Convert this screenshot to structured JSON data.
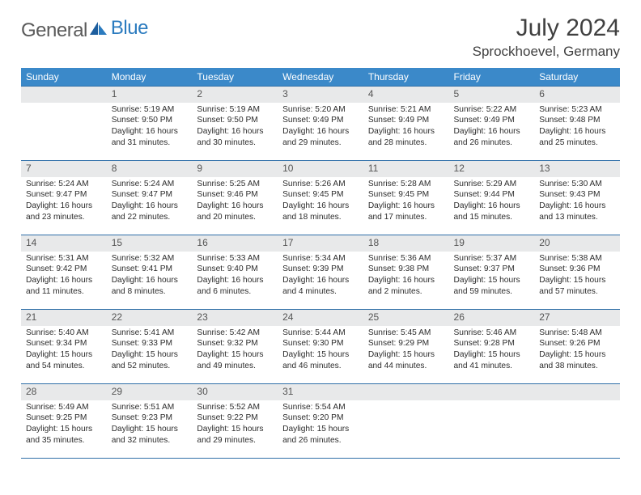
{
  "logo": {
    "general": "General",
    "blue": "Blue"
  },
  "title": "July 2024",
  "location": "Sprockhoevel, Germany",
  "colors": {
    "header_bg": "#3b89c9",
    "header_text": "#ffffff",
    "border": "#2f6fa8",
    "daynum_bg": "#e8e9ea",
    "text": "#2c2c2c",
    "logo_gray": "#5a5a5a",
    "logo_blue": "#2b7bbf"
  },
  "weekdays": [
    "Sunday",
    "Monday",
    "Tuesday",
    "Wednesday",
    "Thursday",
    "Friday",
    "Saturday"
  ],
  "weeks": [
    [
      {
        "day": "",
        "sunrise": "",
        "sunset": "",
        "daylight": ""
      },
      {
        "day": "1",
        "sunrise": "Sunrise: 5:19 AM",
        "sunset": "Sunset: 9:50 PM",
        "daylight": "Daylight: 16 hours and 31 minutes."
      },
      {
        "day": "2",
        "sunrise": "Sunrise: 5:19 AM",
        "sunset": "Sunset: 9:50 PM",
        "daylight": "Daylight: 16 hours and 30 minutes."
      },
      {
        "day": "3",
        "sunrise": "Sunrise: 5:20 AM",
        "sunset": "Sunset: 9:49 PM",
        "daylight": "Daylight: 16 hours and 29 minutes."
      },
      {
        "day": "4",
        "sunrise": "Sunrise: 5:21 AM",
        "sunset": "Sunset: 9:49 PM",
        "daylight": "Daylight: 16 hours and 28 minutes."
      },
      {
        "day": "5",
        "sunrise": "Sunrise: 5:22 AM",
        "sunset": "Sunset: 9:49 PM",
        "daylight": "Daylight: 16 hours and 26 minutes."
      },
      {
        "day": "6",
        "sunrise": "Sunrise: 5:23 AM",
        "sunset": "Sunset: 9:48 PM",
        "daylight": "Daylight: 16 hours and 25 minutes."
      }
    ],
    [
      {
        "day": "7",
        "sunrise": "Sunrise: 5:24 AM",
        "sunset": "Sunset: 9:47 PM",
        "daylight": "Daylight: 16 hours and 23 minutes."
      },
      {
        "day": "8",
        "sunrise": "Sunrise: 5:24 AM",
        "sunset": "Sunset: 9:47 PM",
        "daylight": "Daylight: 16 hours and 22 minutes."
      },
      {
        "day": "9",
        "sunrise": "Sunrise: 5:25 AM",
        "sunset": "Sunset: 9:46 PM",
        "daylight": "Daylight: 16 hours and 20 minutes."
      },
      {
        "day": "10",
        "sunrise": "Sunrise: 5:26 AM",
        "sunset": "Sunset: 9:45 PM",
        "daylight": "Daylight: 16 hours and 18 minutes."
      },
      {
        "day": "11",
        "sunrise": "Sunrise: 5:28 AM",
        "sunset": "Sunset: 9:45 PM",
        "daylight": "Daylight: 16 hours and 17 minutes."
      },
      {
        "day": "12",
        "sunrise": "Sunrise: 5:29 AM",
        "sunset": "Sunset: 9:44 PM",
        "daylight": "Daylight: 16 hours and 15 minutes."
      },
      {
        "day": "13",
        "sunrise": "Sunrise: 5:30 AM",
        "sunset": "Sunset: 9:43 PM",
        "daylight": "Daylight: 16 hours and 13 minutes."
      }
    ],
    [
      {
        "day": "14",
        "sunrise": "Sunrise: 5:31 AM",
        "sunset": "Sunset: 9:42 PM",
        "daylight": "Daylight: 16 hours and 11 minutes."
      },
      {
        "day": "15",
        "sunrise": "Sunrise: 5:32 AM",
        "sunset": "Sunset: 9:41 PM",
        "daylight": "Daylight: 16 hours and 8 minutes."
      },
      {
        "day": "16",
        "sunrise": "Sunrise: 5:33 AM",
        "sunset": "Sunset: 9:40 PM",
        "daylight": "Daylight: 16 hours and 6 minutes."
      },
      {
        "day": "17",
        "sunrise": "Sunrise: 5:34 AM",
        "sunset": "Sunset: 9:39 PM",
        "daylight": "Daylight: 16 hours and 4 minutes."
      },
      {
        "day": "18",
        "sunrise": "Sunrise: 5:36 AM",
        "sunset": "Sunset: 9:38 PM",
        "daylight": "Daylight: 16 hours and 2 minutes."
      },
      {
        "day": "19",
        "sunrise": "Sunrise: 5:37 AM",
        "sunset": "Sunset: 9:37 PM",
        "daylight": "Daylight: 15 hours and 59 minutes."
      },
      {
        "day": "20",
        "sunrise": "Sunrise: 5:38 AM",
        "sunset": "Sunset: 9:36 PM",
        "daylight": "Daylight: 15 hours and 57 minutes."
      }
    ],
    [
      {
        "day": "21",
        "sunrise": "Sunrise: 5:40 AM",
        "sunset": "Sunset: 9:34 PM",
        "daylight": "Daylight: 15 hours and 54 minutes."
      },
      {
        "day": "22",
        "sunrise": "Sunrise: 5:41 AM",
        "sunset": "Sunset: 9:33 PM",
        "daylight": "Daylight: 15 hours and 52 minutes."
      },
      {
        "day": "23",
        "sunrise": "Sunrise: 5:42 AM",
        "sunset": "Sunset: 9:32 PM",
        "daylight": "Daylight: 15 hours and 49 minutes."
      },
      {
        "day": "24",
        "sunrise": "Sunrise: 5:44 AM",
        "sunset": "Sunset: 9:30 PM",
        "daylight": "Daylight: 15 hours and 46 minutes."
      },
      {
        "day": "25",
        "sunrise": "Sunrise: 5:45 AM",
        "sunset": "Sunset: 9:29 PM",
        "daylight": "Daylight: 15 hours and 44 minutes."
      },
      {
        "day": "26",
        "sunrise": "Sunrise: 5:46 AM",
        "sunset": "Sunset: 9:28 PM",
        "daylight": "Daylight: 15 hours and 41 minutes."
      },
      {
        "day": "27",
        "sunrise": "Sunrise: 5:48 AM",
        "sunset": "Sunset: 9:26 PM",
        "daylight": "Daylight: 15 hours and 38 minutes."
      }
    ],
    [
      {
        "day": "28",
        "sunrise": "Sunrise: 5:49 AM",
        "sunset": "Sunset: 9:25 PM",
        "daylight": "Daylight: 15 hours and 35 minutes."
      },
      {
        "day": "29",
        "sunrise": "Sunrise: 5:51 AM",
        "sunset": "Sunset: 9:23 PM",
        "daylight": "Daylight: 15 hours and 32 minutes."
      },
      {
        "day": "30",
        "sunrise": "Sunrise: 5:52 AM",
        "sunset": "Sunset: 9:22 PM",
        "daylight": "Daylight: 15 hours and 29 minutes."
      },
      {
        "day": "31",
        "sunrise": "Sunrise: 5:54 AM",
        "sunset": "Sunset: 9:20 PM",
        "daylight": "Daylight: 15 hours and 26 minutes."
      },
      {
        "day": "",
        "sunrise": "",
        "sunset": "",
        "daylight": ""
      },
      {
        "day": "",
        "sunrise": "",
        "sunset": "",
        "daylight": ""
      },
      {
        "day": "",
        "sunrise": "",
        "sunset": "",
        "daylight": ""
      }
    ]
  ]
}
